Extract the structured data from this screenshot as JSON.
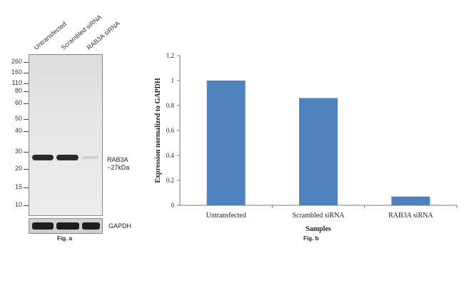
{
  "fig_a": {
    "lanes": [
      "Untransfected",
      "Scrambled siRNA",
      "RAB3A siRNA"
    ],
    "markers": [
      "260",
      "160",
      "110",
      "80",
      "60",
      "50",
      "40",
      "30",
      "20",
      "15",
      "10"
    ],
    "band_label_1": "RAB3A",
    "band_label_2": "~27kDa",
    "loading_label": "GAPDH",
    "caption": "Fig. a"
  },
  "fig_b": {
    "caption": "Fig. b"
  },
  "chart_data": {
    "type": "bar",
    "categories": [
      "Untransfected",
      "Scrambled siRNA",
      "RAB3A siRNA"
    ],
    "values": [
      1.0,
      0.86,
      0.07
    ],
    "xlabel": "Samples",
    "ylabel": "Expression normalized to GAPDH",
    "ylim": [
      0,
      1.2
    ],
    "yticks": [
      "0",
      "0.2",
      "0.4",
      "0.6",
      "0.8",
      "1",
      "1.2"
    ],
    "bar_color": "#4f81bd",
    "grid": false
  }
}
